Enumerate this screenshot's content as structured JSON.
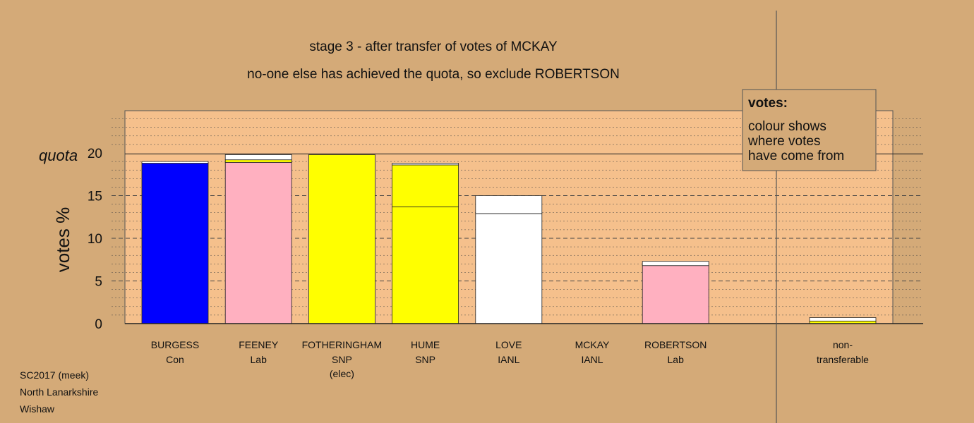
{
  "colors": {
    "background": "#d4aa78",
    "plot_fill": "#f5c08c",
    "con": "#0000ff",
    "lab": "#ffb0c0",
    "snp": "#ffff00",
    "ianl": "#ffffff",
    "legend_fill": "#d4aa78"
  },
  "chart_data": {
    "type": "bar",
    "stacked": true,
    "title": "stage 3 - after transfer of votes of MCKAY",
    "subtitle": "no-one else has achieved the quota, so exclude ROBERTSON",
    "ylabel": "votes %",
    "ylim": [
      0,
      20
    ],
    "yticks": [
      "0",
      "5",
      "10",
      "15",
      "20"
    ],
    "quota_label": "quota",
    "quota": 19.9,
    "grid": true,
    "legend_position": "top-right",
    "candidates": [
      {
        "name": "BURGESS",
        "party": "Con",
        "note": "",
        "segments": [
          {
            "value": 18.8,
            "color": "#0000ff"
          },
          {
            "value": 0.2,
            "color": "#ffffff"
          }
        ]
      },
      {
        "name": "FEENEY",
        "party": "Lab",
        "note": "",
        "segments": [
          {
            "value": 18.9,
            "color": "#ffb0c0"
          },
          {
            "value": 0.3,
            "color": "#ffff00"
          },
          {
            "value": 0.6,
            "color": "#ffffff"
          }
        ]
      },
      {
        "name": "FOTHERINGHAM",
        "party": "SNP",
        "note": "(elec)",
        "segments": [
          {
            "value": 19.8,
            "color": "#ffff00"
          }
        ]
      },
      {
        "name": "HUME",
        "party": "SNP",
        "note": "",
        "segments": [
          {
            "value": 13.7,
            "color": "#ffff00"
          },
          {
            "value": 4.9,
            "color": "#ffff00"
          },
          {
            "value": 0.2,
            "color": "#ffffff"
          }
        ]
      },
      {
        "name": "LOVE",
        "party": "IANL",
        "note": "",
        "segments": [
          {
            "value": 12.9,
            "color": "#ffffff"
          },
          {
            "value": 2.1,
            "color": "#ffffff"
          }
        ]
      },
      {
        "name": "MCKAY",
        "party": "IANL",
        "note": "",
        "segments": []
      },
      {
        "name": "ROBERTSON",
        "party": "Lab",
        "note": "",
        "segments": [
          {
            "value": 6.8,
            "color": "#ffb0c0"
          },
          {
            "value": 0.5,
            "color": "#ffffff"
          }
        ]
      }
    ],
    "nontransferable": {
      "label_line1": "non-",
      "label_line2": "transferable",
      "segments": [
        {
          "value": 0.3,
          "color": "#ffff00"
        },
        {
          "value": 0.4,
          "color": "#ffffff"
        }
      ]
    }
  },
  "legend": {
    "title": "votes:",
    "lines": [
      "colour shows",
      "where votes",
      "have come from"
    ]
  },
  "footer": {
    "lines": [
      "SC2017 (meek)",
      "North Lanarkshire",
      "Wishaw"
    ]
  }
}
